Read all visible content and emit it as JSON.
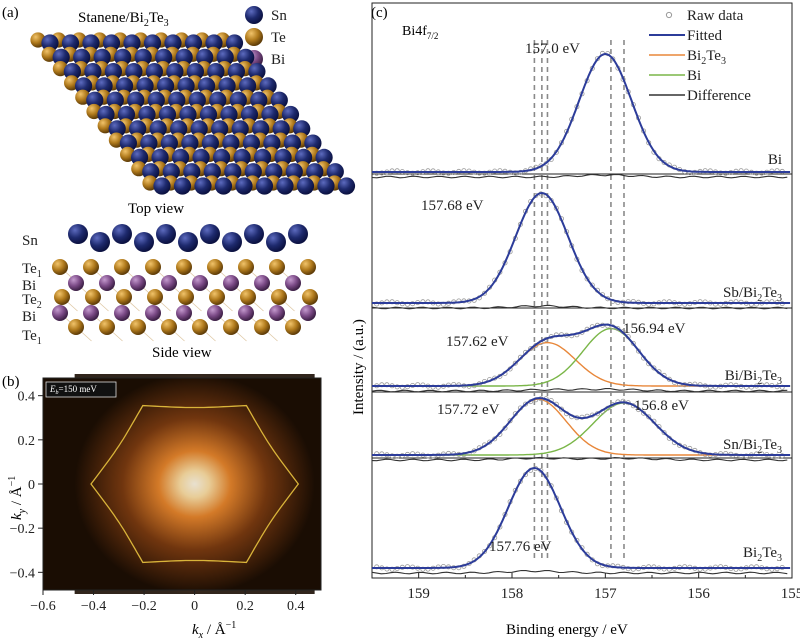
{
  "panel_a": {
    "label": "(a)",
    "title_main": "Stanene/Bi",
    "title_sub": "2",
    "title_tail": "Te",
    "title_sub2": "3",
    "legend": [
      {
        "name": "Sn",
        "color": "#1e2a6e"
      },
      {
        "name": "Te",
        "color": "#b07a1c"
      },
      {
        "name": "Bi",
        "color": "#7b4a86"
      }
    ],
    "top_view_caption": "Top view",
    "side_view_caption": "Side view",
    "side_layers": [
      {
        "text": "Sn",
        "sub": ""
      },
      {
        "text": "Te",
        "sub": "1"
      },
      {
        "text": "Bi",
        "sub": ""
      },
      {
        "text": "Te",
        "sub": "2"
      },
      {
        "text": "Bi",
        "sub": ""
      },
      {
        "text": "Te",
        "sub": "1"
      }
    ]
  },
  "panel_b": {
    "label": "(b)",
    "energy_tag": "E",
    "energy_tag_sub": "b",
    "energy_tag_value": "=150 meV",
    "xlabel_k": "k",
    "xlabel_sub": "x",
    "xlabel_unit": " / Å",
    "ylabel_k": "k",
    "ylabel_sub": "y",
    "ylabel_unit": " / Å",
    "unit_exp": "−1",
    "colors": {
      "dark": "#1a0d03",
      "glow": "#e07a22",
      "core": "#fff4dc",
      "contour": "#d9b43a"
    }
  },
  "chart_data": [
    {
      "type": "heatmap",
      "panel": "(b)",
      "title": "",
      "xlim": [
        -0.6,
        0.5
      ],
      "ylim": [
        -0.48,
        0.48
      ],
      "xticks": [
        "−0.6",
        "−0.4",
        "−0.2",
        "0",
        "0.2",
        "0.4"
      ],
      "xtick_values": [
        -0.6,
        -0.4,
        -0.2,
        0,
        0.2,
        0.4
      ],
      "yticks": [
        "0.4",
        "0.2",
        "0",
        "−0.2",
        "−0.4"
      ],
      "ytick_values": [
        0.4,
        0.2,
        0,
        -0.2,
        -0.4
      ],
      "annotation": "Eb=150 meV",
      "contour": {
        "shape": "hexagon",
        "vertex_radius": 0.41
      }
    },
    {
      "type": "line",
      "panel": "(c)",
      "title": "Bi4f7/2",
      "xlabel": "Binding energy / eV",
      "ylabel": "Intensity / (a.u.)",
      "xlim": [
        159.5,
        155
      ],
      "xticks": [
        "159",
        "158",
        "157",
        "156",
        "155"
      ],
      "xtick_values": [
        159,
        158,
        157,
        156,
        155
      ],
      "legend_entries": [
        "Raw data",
        "Fitted",
        "Bi2Te3",
        "Bi",
        "Difference"
      ],
      "legend_colors": [
        "#9a9a9a",
        "#2c3c9a",
        "#e8873a",
        "#7ab648",
        "#333333"
      ],
      "dashed_reference_lines_eV": [
        157.76,
        157.68,
        157.62,
        156.94,
        156.8
      ],
      "spectra": [
        {
          "sample": "Bi",
          "label": "Bi",
          "components": [
            {
              "name": "Bi",
              "center": 157.0,
              "width": 0.28,
              "amp": 1.0
            }
          ],
          "peak_labels": [
            "157.0 eV"
          ]
        },
        {
          "sample": "Sb/Bi2Te3",
          "label_text": "Sb/Bi",
          "components": [
            {
              "name": "Bi2Te3",
              "center": 157.68,
              "width": 0.28,
              "amp": 1.0
            }
          ],
          "peak_labels": [
            "157.68 eV"
          ]
        },
        {
          "sample": "Bi/Bi2Te3",
          "label_text": "Bi/Bi",
          "components": [
            {
              "name": "Bi2Te3",
              "center": 157.62,
              "width": 0.3,
              "amp": 0.62
            },
            {
              "name": "Bi",
              "center": 156.94,
              "width": 0.3,
              "amp": 0.82
            }
          ],
          "peak_labels": [
            "157.62 eV",
            "156.94 eV"
          ]
        },
        {
          "sample": "Sn/Bi2Te3",
          "label_text": "Sn/Bi",
          "components": [
            {
              "name": "Bi2Te3",
              "center": 157.72,
              "width": 0.3,
              "amp": 0.9
            },
            {
              "name": "Bi",
              "center": 156.8,
              "width": 0.33,
              "amp": 0.84
            }
          ],
          "peak_labels": [
            "157.72 eV",
            "156.8 eV"
          ]
        },
        {
          "sample": "Bi2Te3",
          "label_text": "Bi",
          "components": [
            {
              "name": "Bi2Te3",
              "center": 157.76,
              "width": 0.28,
              "amp": 1.0
            }
          ],
          "peak_labels": [
            "157.76 eV"
          ]
        }
      ]
    }
  ],
  "panel_c": {
    "label": "(c)",
    "title_main": "Bi4f",
    "title_sub": "7/2",
    "ylabel": "Intensity / (a.u.)",
    "xlabel": "Binding energy / eV",
    "legend": [
      {
        "text": "Raw data",
        "sub": "",
        "tail": ""
      },
      {
        "text": "Fitted",
        "sub": "",
        "tail": ""
      },
      {
        "text": "Bi",
        "sub": "2",
        "tail": "Te",
        "sub2": "3"
      },
      {
        "text": "Bi",
        "sub": "",
        "tail": ""
      },
      {
        "text": "Difference",
        "sub": "",
        "tail": ""
      }
    ],
    "sample_labels": [
      {
        "text": "Bi",
        "sub": "",
        "tail": "",
        "sub2": ""
      },
      {
        "text": "Sb/Bi",
        "sub": "2",
        "tail": "Te",
        "sub2": "3"
      },
      {
        "text": "Bi/Bi",
        "sub": "2",
        "tail": "Te",
        "sub2": "3"
      },
      {
        "text": "Sn/Bi",
        "sub": "2",
        "tail": "Te",
        "sub2": "3"
      },
      {
        "text": "Bi",
        "sub": "2",
        "tail": "Te",
        "sub2": "3"
      }
    ],
    "peak_labels": [
      "157.0 eV",
      "157.68 eV",
      "157.62 eV",
      "156.94 eV",
      "157.72 eV",
      "156.8 eV",
      "157.76 eV"
    ]
  }
}
